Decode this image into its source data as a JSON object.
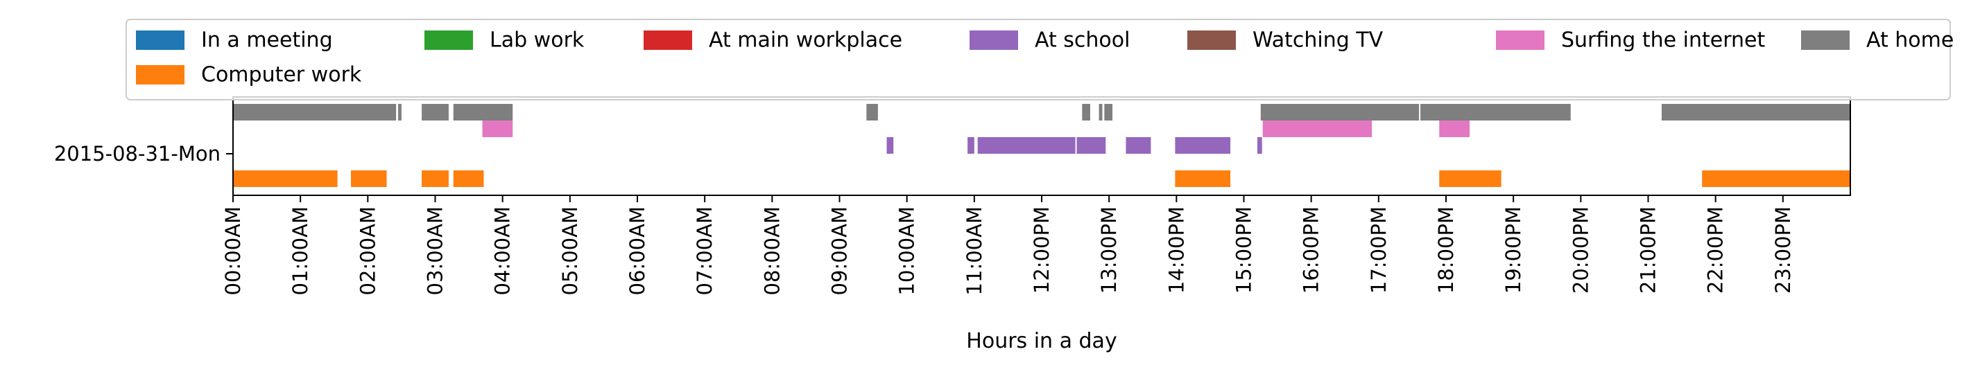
{
  "chart_data": {
    "type": "timeline",
    "xlabel": "Hours in a day",
    "xlim": [
      0,
      24
    ],
    "x_ticks": [
      "00:00AM",
      "01:00AM",
      "02:00AM",
      "03:00AM",
      "04:00AM",
      "05:00AM",
      "06:00AM",
      "07:00AM",
      "08:00AM",
      "09:00AM",
      "10:00AM",
      "11:00AM",
      "12:00PM",
      "13:00PM",
      "14:00PM",
      "15:00PM",
      "16:00PM",
      "17:00PM",
      "18:00PM",
      "19:00PM",
      "20:00PM",
      "21:00PM",
      "22:00PM",
      "23:00PM"
    ],
    "y_category": "2015-08-31-Mon",
    "legend_position": "top",
    "legend": [
      {
        "name": "In a meeting",
        "color": "#1f77b4"
      },
      {
        "name": "Lab work",
        "color": "#2ca02c"
      },
      {
        "name": "At main workplace",
        "color": "#d62728"
      },
      {
        "name": "At school",
        "color": "#9467bd"
      },
      {
        "name": "Watching TV",
        "color": "#8c564b"
      },
      {
        "name": "Surfing the internet",
        "color": "#e377c2"
      },
      {
        "name": "At home",
        "color": "#7f7f7f"
      },
      {
        "name": "Computer work",
        "color": "#ff7f0e"
      }
    ],
    "series": [
      {
        "name": "At home",
        "intervals": [
          [
            0.0,
            2.42
          ],
          [
            2.45,
            2.5
          ],
          [
            2.8,
            3.2
          ],
          [
            3.27,
            4.15
          ],
          [
            9.4,
            9.57
          ],
          [
            12.6,
            12.72
          ],
          [
            12.85,
            12.9
          ],
          [
            12.93,
            13.05
          ],
          [
            15.25,
            17.6
          ],
          [
            17.62,
            19.85
          ],
          [
            21.2,
            24.0
          ]
        ]
      },
      {
        "name": "Surfing the internet",
        "intervals": [
          [
            3.7,
            4.15
          ],
          [
            15.28,
            16.9
          ],
          [
            17.9,
            18.35
          ]
        ]
      },
      {
        "name": "At school",
        "intervals": [
          [
            9.7,
            9.8
          ],
          [
            10.9,
            11.0
          ],
          [
            11.05,
            12.5
          ],
          [
            12.52,
            12.95
          ],
          [
            13.25,
            13.62
          ],
          [
            13.98,
            14.8
          ],
          [
            15.2,
            15.27
          ]
        ]
      },
      {
        "name": "Computer work",
        "intervals": [
          [
            0.0,
            1.55
          ],
          [
            1.75,
            2.28
          ],
          [
            2.8,
            3.2
          ],
          [
            3.27,
            3.72
          ],
          [
            13.98,
            14.8
          ],
          [
            17.9,
            18.82
          ],
          [
            21.8,
            24.0
          ]
        ]
      }
    ]
  }
}
